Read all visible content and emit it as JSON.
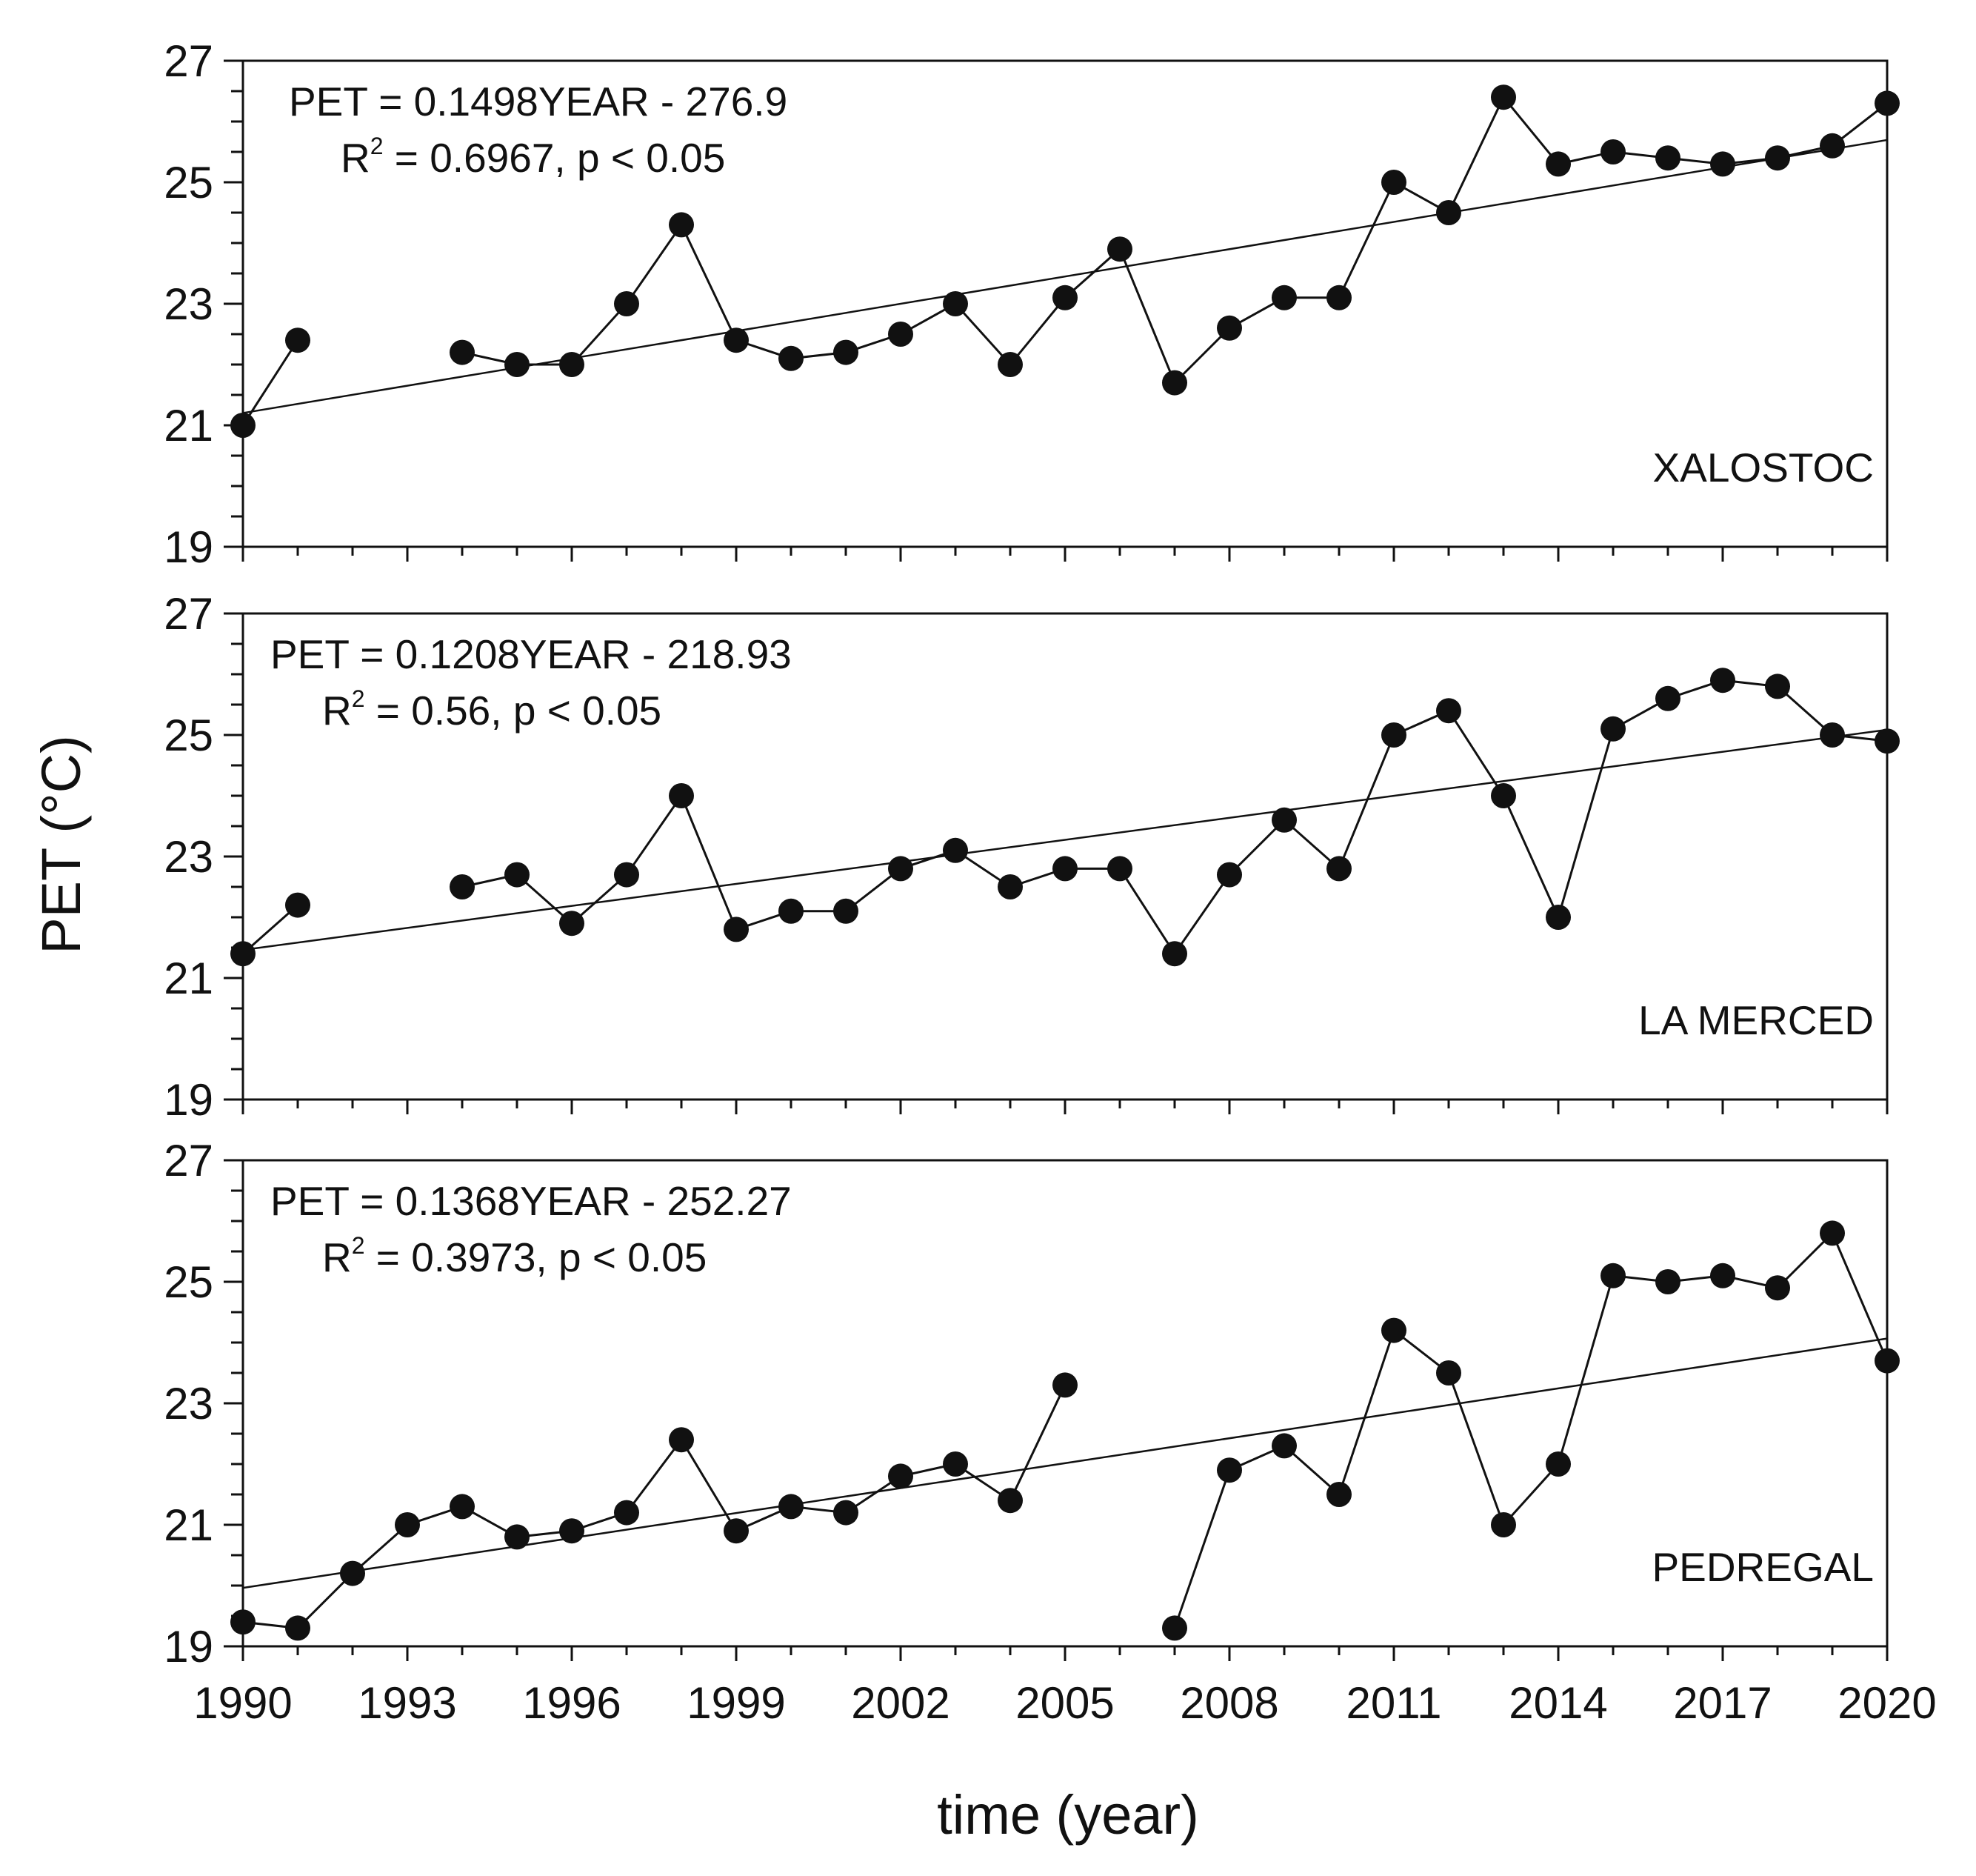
{
  "figure": {
    "ylabel": "PET (°C)",
    "xlabel": "time (year)"
  },
  "chart_data": [
    {
      "type": "line",
      "panel": "XALOSTOC",
      "station_label": "XALOSTOC",
      "equation": "PET = 0.1498YEAR - 276.9",
      "r2_prefix": "R",
      "r2_sup": "2",
      "r2_text": " = 0.6967, p < 0.05",
      "xlim": [
        1990,
        2020
      ],
      "ylim": [
        19,
        27
      ],
      "x_ticks": [
        "1990",
        "1993",
        "1996",
        "1999",
        "2002",
        "2005",
        "2008",
        "2011",
        "2014",
        "2017",
        "2020"
      ],
      "y_ticks": [
        "27",
        "25",
        "23",
        "21",
        "19"
      ],
      "trend": {
        "slope": 0.1498,
        "intercept": -276.9
      },
      "segments": [
        [
          [
            1990,
            21.0
          ],
          [
            1991,
            22.4
          ]
        ],
        [
          [
            1994,
            22.2
          ],
          [
            1995,
            22.0
          ],
          [
            1996,
            22.0
          ],
          [
            1997,
            23.0
          ],
          [
            1998,
            24.3
          ],
          [
            1999,
            22.4
          ],
          [
            2000,
            22.1
          ],
          [
            2001,
            22.2
          ],
          [
            2002,
            22.5
          ],
          [
            2003,
            23.0
          ],
          [
            2004,
            22.0
          ],
          [
            2005,
            23.1
          ],
          [
            2006,
            23.9
          ],
          [
            2007,
            21.7
          ],
          [
            2008,
            22.6
          ],
          [
            2009,
            23.1
          ],
          [
            2010,
            23.1
          ],
          [
            2011,
            25.0
          ],
          [
            2012,
            24.5
          ],
          [
            2013,
            26.4
          ],
          [
            2014,
            25.3
          ],
          [
            2015,
            25.5
          ],
          [
            2016,
            25.4
          ],
          [
            2017,
            25.3
          ],
          [
            2018,
            25.4
          ],
          [
            2019,
            25.6
          ],
          [
            2020,
            26.3
          ]
        ]
      ]
    },
    {
      "type": "line",
      "panel": "LA MERCED",
      "station_label": "LA MERCED",
      "equation": "PET = 0.1208YEAR - 218.93",
      "r2_prefix": "R",
      "r2_sup": "2",
      "r2_text": " = 0.56, p < 0.05",
      "xlim": [
        1990,
        2020
      ],
      "ylim": [
        19,
        27
      ],
      "x_ticks": [
        "1990",
        "1993",
        "1996",
        "1999",
        "2002",
        "2005",
        "2008",
        "2011",
        "2014",
        "2017",
        "2020"
      ],
      "y_ticks": [
        "27",
        "25",
        "23",
        "21",
        "19"
      ],
      "trend": {
        "slope": 0.1208,
        "intercept": -218.93
      },
      "segments": [
        [
          [
            1990,
            21.4
          ],
          [
            1991,
            22.2
          ]
        ],
        [
          [
            1994,
            22.5
          ],
          [
            1995,
            22.7
          ],
          [
            1996,
            21.9
          ],
          [
            1997,
            22.7
          ],
          [
            1998,
            24.0
          ],
          [
            1999,
            21.8
          ],
          [
            2000,
            22.1
          ],
          [
            2001,
            22.1
          ],
          [
            2002,
            22.8
          ],
          [
            2003,
            23.1
          ],
          [
            2004,
            22.5
          ],
          [
            2005,
            22.8
          ],
          [
            2006,
            22.8
          ],
          [
            2007,
            21.4
          ],
          [
            2008,
            22.7
          ],
          [
            2009,
            23.6
          ],
          [
            2010,
            22.8
          ],
          [
            2011,
            25.0
          ],
          [
            2012,
            25.4
          ],
          [
            2013,
            24.0
          ],
          [
            2014,
            22.0
          ],
          [
            2015,
            25.1
          ],
          [
            2016,
            25.6
          ],
          [
            2017,
            25.9
          ],
          [
            2018,
            25.8
          ],
          [
            2019,
            25.0
          ],
          [
            2020,
            24.9
          ]
        ]
      ]
    },
    {
      "type": "line",
      "panel": "PEDREGAL",
      "station_label": "PEDREGAL",
      "equation": "PET = 0.1368YEAR - 252.27",
      "r2_prefix": "R",
      "r2_sup": "2",
      "r2_text": " = 0.3973, p < 0.05",
      "xlim": [
        1990,
        2020
      ],
      "ylim": [
        19,
        27
      ],
      "x_ticks": [
        "1990",
        "1993",
        "1996",
        "1999",
        "2002",
        "2005",
        "2008",
        "2011",
        "2014",
        "2017",
        "2020"
      ],
      "y_ticks": [
        "27",
        "25",
        "23",
        "21",
        "19"
      ],
      "trend": {
        "slope": 0.1368,
        "intercept": -252.27
      },
      "segments": [
        [
          [
            1990,
            19.4
          ],
          [
            1991,
            19.3
          ],
          [
            1992,
            20.2
          ],
          [
            1993,
            21.0
          ],
          [
            1994,
            21.3
          ],
          [
            1995,
            20.8
          ],
          [
            1996,
            20.9
          ],
          [
            1997,
            21.2
          ],
          [
            1998,
            22.4
          ],
          [
            1999,
            20.9
          ],
          [
            2000,
            21.3
          ],
          [
            2001,
            21.2
          ],
          [
            2002,
            21.8
          ],
          [
            2003,
            22.0
          ],
          [
            2004,
            21.4
          ],
          [
            2005,
            23.3
          ]
        ],
        [
          [
            2007,
            19.3
          ],
          [
            2008,
            21.9
          ],
          [
            2009,
            22.3
          ],
          [
            2010,
            21.5
          ],
          [
            2011,
            24.2
          ],
          [
            2012,
            23.5
          ],
          [
            2013,
            21.0
          ],
          [
            2014,
            22.0
          ],
          [
            2015,
            25.1
          ],
          [
            2016,
            25.0
          ],
          [
            2017,
            25.1
          ],
          [
            2018,
            24.9
          ],
          [
            2019,
            25.8
          ],
          [
            2020,
            23.7
          ]
        ]
      ]
    }
  ]
}
